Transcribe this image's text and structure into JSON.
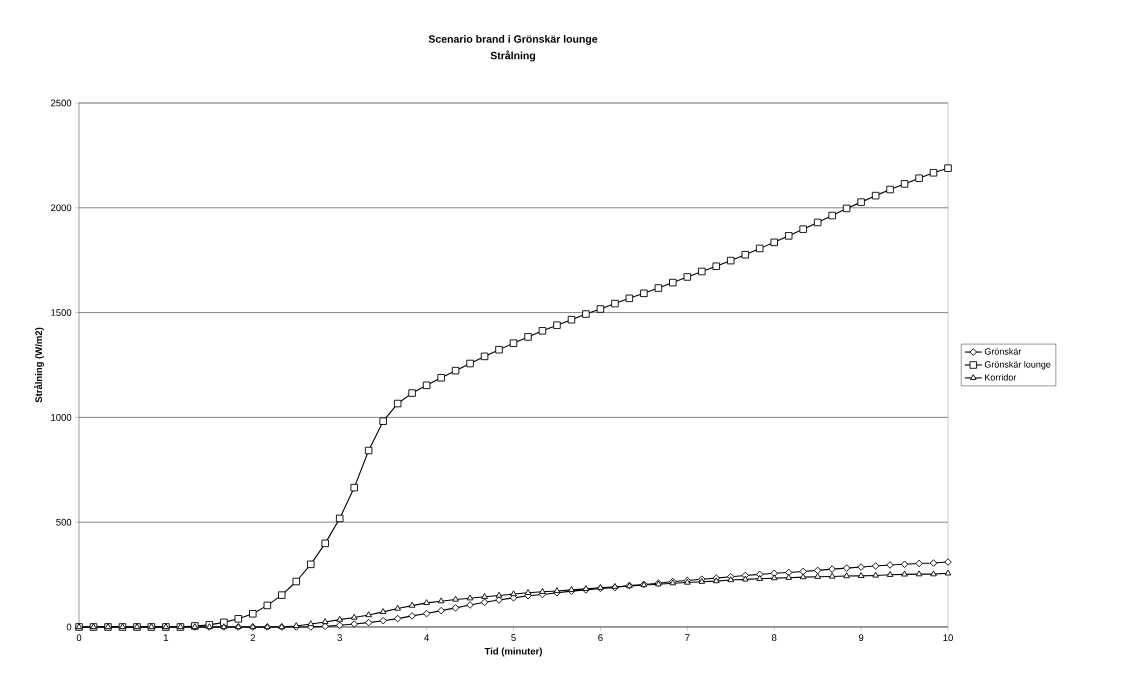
{
  "chart_data": {
    "type": "line",
    "title": "Scenario brand i Grönskär lounge",
    "subtitle": "Strålning",
    "xlabel": "Tid (minuter)",
    "ylabel": "Strålning (W/m2)",
    "x": [
      0,
      0.167,
      0.333,
      0.5,
      0.667,
      0.833,
      1,
      1.167,
      1.333,
      1.5,
      1.667,
      1.833,
      2,
      2.167,
      2.333,
      2.5,
      2.667,
      2.833,
      3,
      3.167,
      3.333,
      3.5,
      3.667,
      3.833,
      4,
      4.167,
      4.333,
      4.5,
      4.667,
      4.833,
      5,
      5.167,
      5.333,
      5.5,
      5.667,
      5.833,
      6,
      6.167,
      6.333,
      6.5,
      6.667,
      6.833,
      7,
      7.167,
      7.333,
      7.5,
      7.667,
      7.833,
      8,
      8.167,
      8.333,
      8.5,
      8.667,
      8.833,
      9,
      9.167,
      9.333,
      9.5,
      9.667,
      9.833,
      10
    ],
    "series": [
      {
        "name": "Grönskär",
        "color": "#000000",
        "marker": "diamond",
        "values": [
          0,
          0,
          0,
          0,
          0,
          0,
          0,
          0,
          0,
          0,
          0,
          0,
          0,
          0,
          0,
          0,
          0,
          3,
          8,
          14,
          21,
          30,
          40,
          53,
          64,
          78,
          91,
          105,
          118,
          129,
          139,
          149,
          155,
          163,
          171,
          177,
          184,
          188,
          198,
          203,
          209,
          217,
          222,
          228,
          233,
          240,
          246,
          251,
          256,
          260,
          265,
          270,
          276,
          281,
          286,
          291,
          296,
          299,
          303,
          305,
          310
        ]
      },
      {
        "name": "Grönskär lounge",
        "color": "#000000",
        "marker": "square",
        "values": [
          0,
          0,
          0,
          0,
          0,
          0,
          0,
          0,
          5,
          10,
          22,
          39,
          63,
          103,
          152,
          217,
          299,
          399,
          518,
          665,
          842,
          982,
          1066,
          1116,
          1153,
          1189,
          1223,
          1257,
          1291,
          1323,
          1354,
          1384,
          1413,
          1440,
          1466,
          1493,
          1517,
          1543,
          1568,
          1592,
          1617,
          1643,
          1670,
          1696,
          1721,
          1748,
          1776,
          1806,
          1835,
          1866,
          1898,
          1930,
          1963,
          1997,
          2027,
          2058,
          2087,
          2114,
          2141,
          2167,
          2189
        ]
      },
      {
        "name": "Korridor",
        "color": "#000000",
        "marker": "triangle",
        "values": [
          0,
          0,
          0,
          0,
          0,
          0,
          0,
          0,
          0,
          0,
          0,
          0,
          0,
          0,
          0,
          5,
          14,
          24,
          35,
          45,
          57,
          72,
          88,
          102,
          115,
          123,
          131,
          137,
          144,
          150,
          157,
          163,
          168,
          172,
          177,
          182,
          187,
          192,
          195,
          200,
          204,
          209,
          212,
          216,
          219,
          224,
          227,
          230,
          233,
          235,
          238,
          240,
          241,
          243,
          244,
          246,
          249,
          251,
          252,
          252,
          256
        ]
      }
    ],
    "xlim": [
      0,
      10
    ],
    "xticks": [
      0,
      1,
      2,
      3,
      4,
      5,
      6,
      7,
      8,
      9,
      10
    ],
    "ylim": [
      0,
      2500
    ],
    "yticks": [
      0,
      500,
      1000,
      1500,
      2000,
      2500
    ],
    "grid": "y",
    "legend": "right",
    "line_style": "solid"
  }
}
